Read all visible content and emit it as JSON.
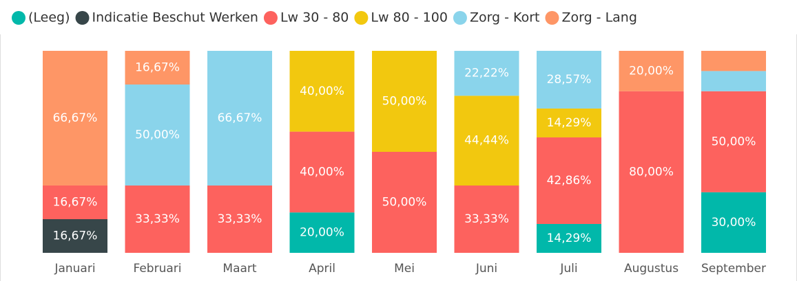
{
  "chart_data": {
    "type": "stacked_bar_100",
    "categories": [
      "Januari",
      "Februari",
      "Maart",
      "April",
      "Mei",
      "Juni",
      "Juli",
      "Augustus",
      "September"
    ],
    "ylim": [
      0,
      100
    ],
    "series": [
      {
        "name": "(Leeg)",
        "color": "#01B8AA",
        "values": [
          null,
          null,
          null,
          20,
          null,
          null,
          14.29,
          null,
          30
        ],
        "value_labels": [
          null,
          null,
          null,
          "20,00%",
          null,
          null,
          "14,29%",
          null,
          "30,00%"
        ]
      },
      {
        "name": "Indicatie Beschut Werken",
        "color": "#374649",
        "values": [
          16.67,
          null,
          null,
          null,
          null,
          null,
          null,
          null,
          null
        ],
        "value_labels": [
          "16,67%",
          null,
          null,
          null,
          null,
          null,
          null,
          null,
          null
        ]
      },
      {
        "name": "Lw 30 - 80",
        "color": "#FD625E",
        "values": [
          16.67,
          33.33,
          33.33,
          40,
          50,
          33.33,
          42.86,
          80,
          50
        ],
        "value_labels": [
          "16,67%",
          "33,33%",
          "33,33%",
          "40,00%",
          "50,00%",
          "33,33%",
          "42,86%",
          "80,00%",
          "50,00%"
        ]
      },
      {
        "name": "Lw 80 - 100",
        "color": "#F2C80F",
        "values": [
          null,
          null,
          null,
          40,
          50,
          44.44,
          14.29,
          null,
          null
        ],
        "value_labels": [
          null,
          null,
          null,
          "40,00%",
          "50,00%",
          "44,44%",
          "14,29%",
          null,
          null
        ]
      },
      {
        "name": "Zorg - Kort",
        "color": "#8AD4EB",
        "values": [
          null,
          50,
          66.67,
          null,
          null,
          22.22,
          28.57,
          null,
          10
        ],
        "value_labels": [
          null,
          "50,00%",
          "66,67%",
          null,
          null,
          "22,22%",
          "28,57%",
          null,
          null
        ]
      },
      {
        "name": "Zorg - Lang",
        "color": "#FE9666",
        "values": [
          66.67,
          16.67,
          null,
          null,
          null,
          null,
          null,
          20,
          10
        ],
        "value_labels": [
          "66,67%",
          "16,67%",
          null,
          null,
          null,
          null,
          null,
          "20,00%",
          null
        ]
      }
    ]
  }
}
